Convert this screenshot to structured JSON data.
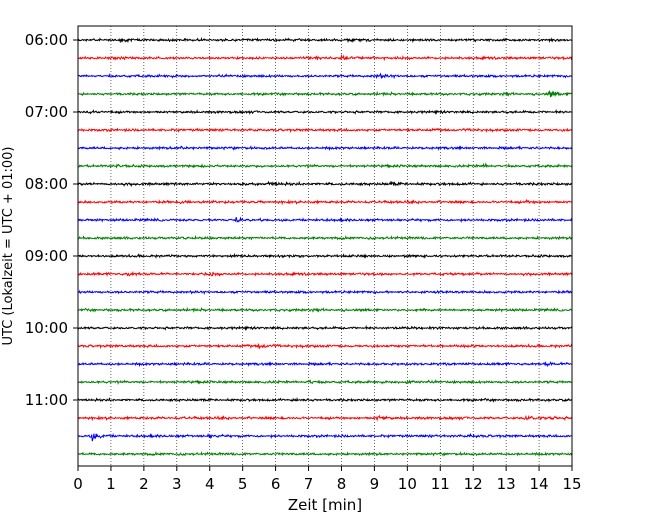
{
  "chart_data": {
    "type": "line",
    "title": "",
    "xlabel": "Zeit  [min]",
    "ylabel": "UTC (Lokalzeit = UTC + 01:00)",
    "xlim": [
      0,
      15
    ],
    "x_ticks": [
      0,
      1,
      2,
      3,
      4,
      5,
      6,
      7,
      8,
      9,
      10,
      11,
      12,
      13,
      14,
      15
    ],
    "hour_labels": [
      "06:00",
      "07:00",
      "08:00",
      "09:00",
      "10:00",
      "11:00"
    ],
    "trace_colors": [
      "#000000",
      "#ff0000",
      "#0000ff",
      "#008000"
    ],
    "grid": "vertical dotted",
    "legend": "none",
    "traces": [
      {
        "start": "06:00",
        "color": "#000000",
        "amp": 2.0,
        "events": [
          [
            1.3,
            2
          ],
          [
            8.2,
            2.5
          ]
        ]
      },
      {
        "start": "06:15",
        "color": "#ff0000",
        "amp": 2.0,
        "events": [
          [
            7.3,
            4.5
          ],
          [
            8.0,
            3
          ]
        ]
      },
      {
        "start": "06:30",
        "color": "#0000ff",
        "amp": 2.0,
        "events": [
          [
            9.1,
            3
          ]
        ]
      },
      {
        "start": "06:45",
        "color": "#008000",
        "amp": 2.0,
        "events": [
          [
            14.3,
            6.5
          ]
        ]
      },
      {
        "start": "07:00",
        "color": "#000000",
        "amp": 2.0,
        "events": [
          [
            0.3,
            2.5
          ]
        ]
      },
      {
        "start": "07:15",
        "color": "#ff0000",
        "amp": 2.0,
        "events": []
      },
      {
        "start": "07:30",
        "color": "#0000ff",
        "amp": 2.0,
        "events": [
          [
            3.1,
            3
          ]
        ]
      },
      {
        "start": "07:45",
        "color": "#008000",
        "amp": 2.0,
        "events": [
          [
            12.3,
            3
          ],
          [
            1.2,
            2
          ]
        ]
      },
      {
        "start": "08:00",
        "color": "#000000",
        "amp": 2.2,
        "events": [
          [
            5.8,
            3.5
          ],
          [
            9.5,
            2
          ]
        ]
      },
      {
        "start": "08:15",
        "color": "#ff0000",
        "amp": 2.0,
        "events": [
          [
            13.6,
            2
          ]
        ]
      },
      {
        "start": "08:30",
        "color": "#0000ff",
        "amp": 2.0,
        "events": [
          [
            4.8,
            3
          ]
        ]
      },
      {
        "start": "08:45",
        "color": "#008000",
        "amp": 2.0,
        "events": []
      },
      {
        "start": "09:00",
        "color": "#000000",
        "amp": 2.0,
        "events": []
      },
      {
        "start": "09:15",
        "color": "#ff0000",
        "amp": 2.0,
        "events": [
          [
            1.5,
            3
          ],
          [
            3.9,
            3
          ]
        ]
      },
      {
        "start": "09:30",
        "color": "#0000ff",
        "amp": 2.0,
        "events": []
      },
      {
        "start": "09:45",
        "color": "#008000",
        "amp": 2.0,
        "events": []
      },
      {
        "start": "10:00",
        "color": "#000000",
        "amp": 2.0,
        "events": []
      },
      {
        "start": "10:15",
        "color": "#ff0000",
        "amp": 2.0,
        "events": [
          [
            5.5,
            3.5
          ]
        ]
      },
      {
        "start": "10:30",
        "color": "#0000ff",
        "amp": 2.0,
        "events": [
          [
            14.2,
            2.5
          ]
        ]
      },
      {
        "start": "10:45",
        "color": "#008000",
        "amp": 2.0,
        "events": [
          [
            7.0,
            4
          ],
          [
            10.0,
            4
          ]
        ]
      },
      {
        "start": "11:00",
        "color": "#000000",
        "amp": 2.0,
        "events": [
          [
            6.6,
            3
          ]
        ]
      },
      {
        "start": "11:15",
        "color": "#ff0000",
        "amp": 2.0,
        "events": [
          [
            9.1,
            4
          ],
          [
            13.6,
            4
          ],
          [
            14.3,
            3
          ]
        ]
      },
      {
        "start": "11:30",
        "color": "#0000ff",
        "amp": 2.0,
        "events": [
          [
            0.4,
            8
          ],
          [
            4.0,
            2
          ],
          [
            11.9,
            2
          ]
        ]
      },
      {
        "start": "11:45",
        "color": "#008000",
        "amp": 2.0,
        "events": []
      }
    ]
  }
}
